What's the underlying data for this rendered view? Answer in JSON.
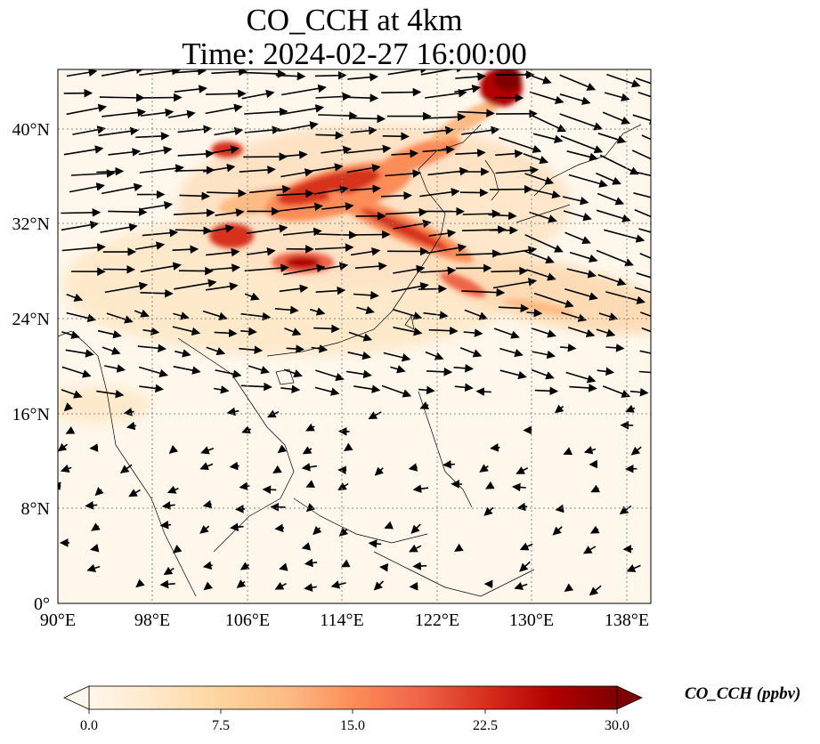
{
  "title": {
    "line1": "CO_CCH at 4km",
    "line2": "Time: 2024-02-27 16:00:00"
  },
  "map": {
    "lat_range": [
      0,
      45
    ],
    "lon_range": [
      90,
      140
    ],
    "lat_ticks": [
      "0°",
      "8°N",
      "16°N",
      "24°N",
      "32°N",
      "40°N"
    ],
    "lon_ticks": [
      "90°E",
      "98°E",
      "106°E",
      "114°E",
      "122°E",
      "130°E",
      "138°E"
    ],
    "grid": "dotted"
  },
  "colorbar": {
    "label": "CO_CCH (ppbv)",
    "ticks": [
      "0.0",
      "7.5",
      "15.0",
      "22.5",
      "30.0"
    ],
    "colormap": [
      "#fff7ec",
      "#fee8c8",
      "#fdd49e",
      "#fdbb84",
      "#fc8d59",
      "#ef6548",
      "#d7301f",
      "#b30000",
      "#7f0000"
    ],
    "extend": "both"
  }
}
